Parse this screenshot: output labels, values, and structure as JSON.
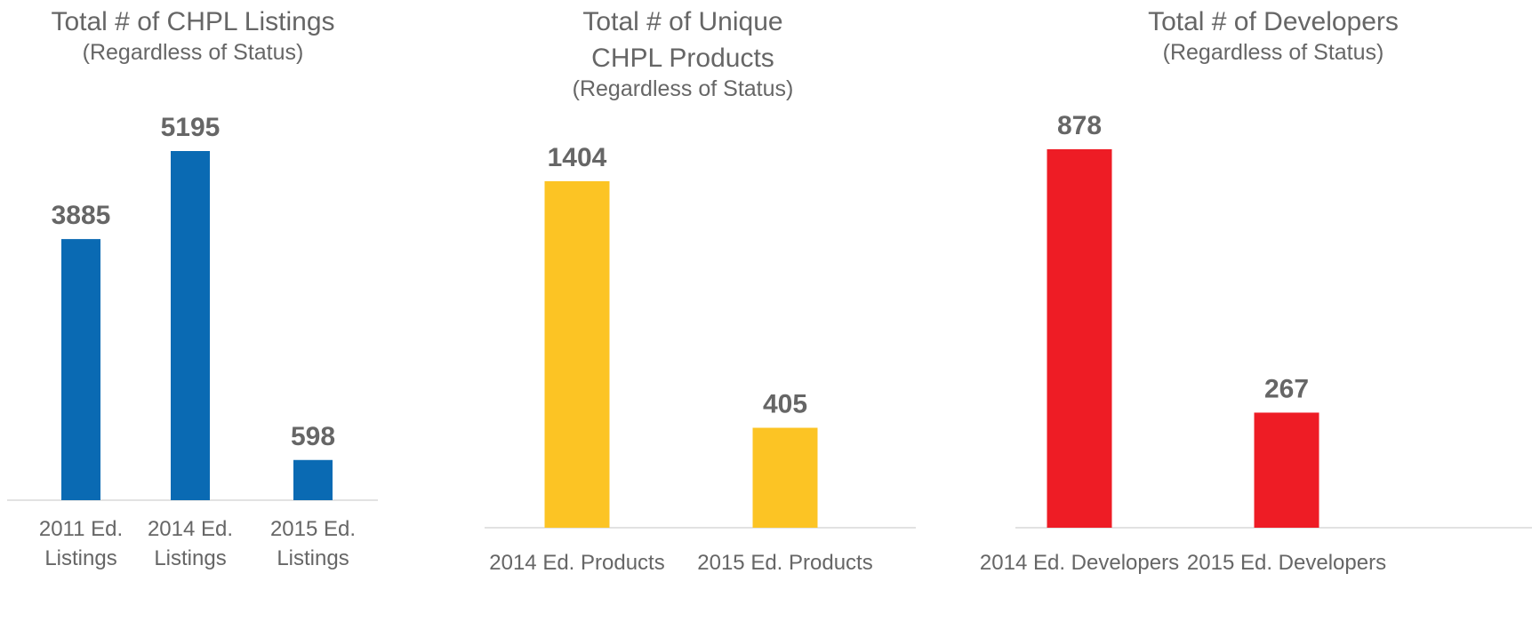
{
  "chart_data": [
    {
      "type": "bar",
      "title": "Total # of CHPL Listings",
      "subtitle": "(Regardless of Status)",
      "categories": [
        [
          "2011 Ed.",
          "Listings"
        ],
        [
          "2014 Ed.",
          "Listings"
        ],
        [
          "2015 Ed.",
          "Listings"
        ]
      ],
      "values": [
        3885,
        5195,
        598
      ],
      "color": "#0a6ab3",
      "data_labels": true,
      "grid": false
    },
    {
      "type": "bar",
      "title": "Total # of Unique\nCHPL Products",
      "subtitle": "(Regardless of Status)",
      "categories": [
        [
          "2014 Ed. Products"
        ],
        [
          "2015 Ed. Products"
        ]
      ],
      "values": [
        1404,
        405
      ],
      "color": "#fcc424",
      "data_labels": true,
      "grid": false
    },
    {
      "type": "bar",
      "title": "Total # of Developers",
      "subtitle": "(Regardless of Status)",
      "categories": [
        [
          "2014 Ed. Developers"
        ],
        [
          "2015 Ed. Developers"
        ]
      ],
      "values": [
        878,
        267
      ],
      "color": "#ee1c25",
      "data_labels": true,
      "grid": false
    }
  ]
}
